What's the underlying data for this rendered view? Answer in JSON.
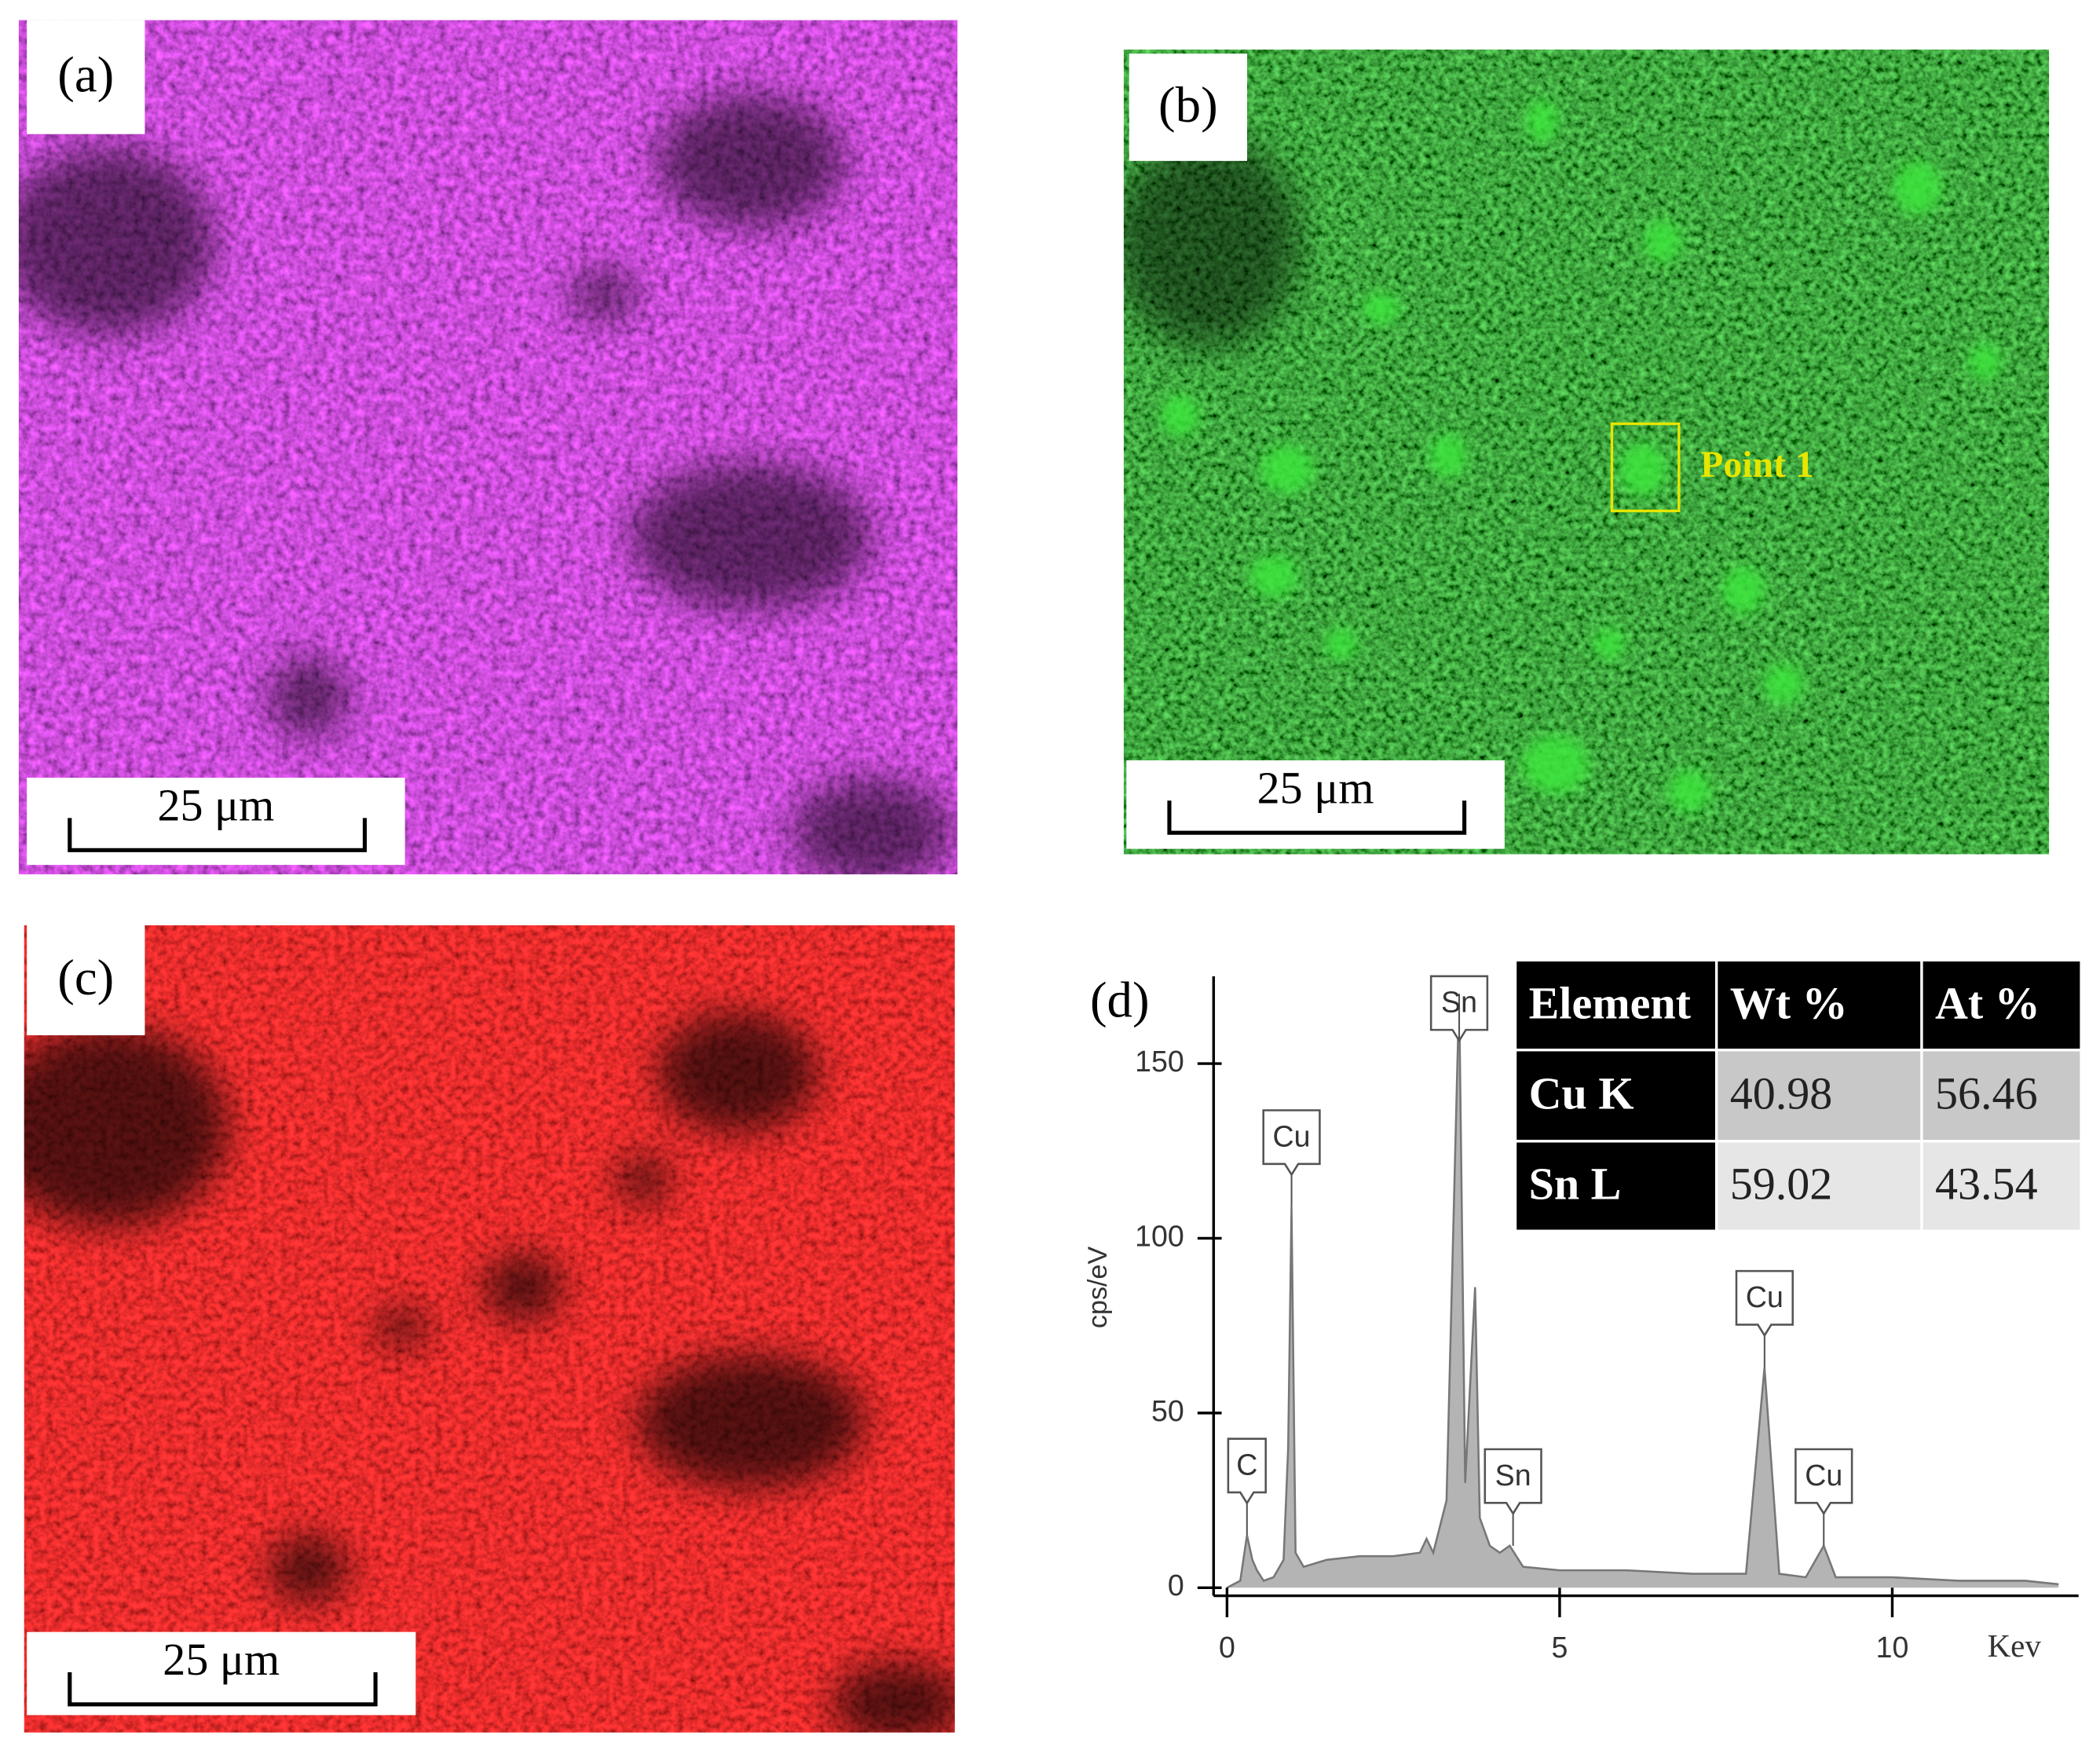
{
  "panels": [
    {
      "label": "(a)",
      "scale_bar": "25 μm"
    },
    {
      "label": "(b)",
      "scale_bar": "25 μm",
      "marker": "Point 1"
    },
    {
      "label": "(c)",
      "scale_bar": "25 μm"
    },
    {
      "label": "(d)"
    }
  ],
  "chart_data": {
    "type": "area",
    "xlabel": "Kev",
    "ylabel": "cps/eV",
    "x": [
      0,
      0.2,
      0.3,
      0.38,
      0.45,
      0.55,
      0.7,
      0.85,
      0.92,
      0.97,
      1.03,
      1.15,
      1.5,
      2,
      2.5,
      2.9,
      3.0,
      3.1,
      3.3,
      3.49,
      3.58,
      3.73,
      3.8,
      3.95,
      4.1,
      4.25,
      4.45,
      5,
      6,
      7,
      7.8,
      8.08,
      8.3,
      8.7,
      8.97,
      9.15,
      10,
      11,
      12,
      12.5
    ],
    "series": [
      {
        "name": "Point 1",
        "color": "#b4b4b4",
        "values": [
          0,
          2,
          15,
          8,
          5,
          2,
          3,
          8,
          40,
          109,
          10,
          6,
          8,
          9,
          9,
          10,
          14,
          10,
          25,
          170,
          30,
          86,
          20,
          12,
          10,
          12,
          6,
          5,
          5,
          4,
          4,
          63,
          4,
          3,
          12,
          3,
          3,
          2,
          2,
          1
        ]
      }
    ],
    "annotations": [
      {
        "text": "C",
        "x": 0.3,
        "y": 15
      },
      {
        "text": "Cu",
        "x": 0.97,
        "y": 109
      },
      {
        "text": "Sn",
        "x": 3.49,
        "y": 170
      },
      {
        "text": "Sn",
        "x": 4.3,
        "y": 12
      },
      {
        "text": "Cu",
        "x": 8.08,
        "y": 63
      },
      {
        "text": "Cu",
        "x": 8.97,
        "y": 12
      }
    ],
    "xlim": [
      0,
      12.8
    ],
    "xticks": [
      0,
      5,
      10
    ],
    "ylim": [
      0,
      175
    ],
    "yticks": [
      0,
      50,
      100,
      150
    ]
  },
  "table": {
    "header": [
      "Element",
      "Wt %",
      "At %"
    ],
    "rows": [
      [
        "Cu K",
        "40.98",
        "56.46"
      ],
      [
        "Sn L",
        "59.02",
        "43.54"
      ]
    ]
  }
}
